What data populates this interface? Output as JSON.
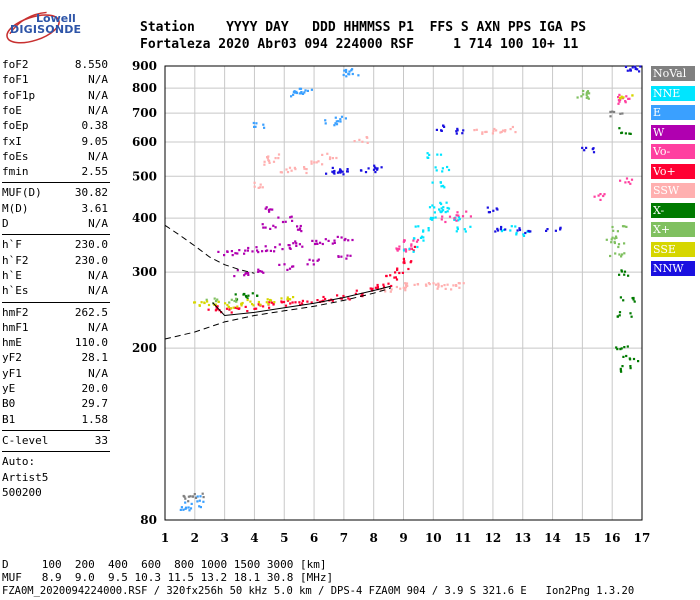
{
  "logo": {
    "line1": "Lowell",
    "line2": "DIGISONDE"
  },
  "header": {
    "row1": "Station    YYYY DAY   DDD HHMMSS P1  FFS S AXN PPS IGA PS",
    "row2": "Fortaleza 2020 Abr03 094 224000 RSF     1 714 100 10+ 11"
  },
  "params": {
    "group1": [
      {
        "label": "foF2",
        "value": "8.550"
      },
      {
        "label": "foF1",
        "value": "N/A"
      },
      {
        "label": "foF1p",
        "value": "N/A"
      },
      {
        "label": "foE",
        "value": "N/A"
      },
      {
        "label": "foEp",
        "value": "0.38"
      },
      {
        "label": "fxI",
        "value": "9.05"
      },
      {
        "label": "foEs",
        "value": "N/A"
      },
      {
        "label": "fmin",
        "value": "2.55"
      }
    ],
    "group2": [
      {
        "label": "MUF(D)",
        "value": "30.82"
      },
      {
        "label": "M(D)",
        "value": "3.61"
      },
      {
        "label": "D",
        "value": "N/A"
      }
    ],
    "group3": [
      {
        "label": "h`F",
        "value": "230.0"
      },
      {
        "label": "h`F2",
        "value": "230.0"
      },
      {
        "label": "h`E",
        "value": "N/A"
      },
      {
        "label": "h`Es",
        "value": "N/A"
      }
    ],
    "group4": [
      {
        "label": "hmF2",
        "value": "262.5"
      },
      {
        "label": "hmF1",
        "value": "N/A"
      },
      {
        "label": "hmE",
        "value": "110.0"
      },
      {
        "label": "yF2",
        "value": "28.1"
      },
      {
        "label": "yF1",
        "value": "N/A"
      },
      {
        "label": "yE",
        "value": "20.0"
      },
      {
        "label": "B0",
        "value": "29.7"
      },
      {
        "label": "B1",
        "value": "1.58"
      }
    ],
    "group5": [
      {
        "label": "C-level",
        "value": "33"
      }
    ],
    "group6": [
      {
        "label": "Auto:",
        "value": ""
      },
      {
        "label": "Artist5",
        "value": ""
      },
      {
        "label": "500200",
        "value": ""
      }
    ]
  },
  "bottom": {
    "line1": "D     100  200  400  600  800 1000 1500 3000 [km]",
    "line2": "MUF   8.9  9.0  9.5 10.3 11.5 13.2 18.1 30.8 [MHz]",
    "line3": "FZA0M_2020094224000.RSF / 320fx256h 50 kHz 5.0 km / DPS-4 FZA0M 904 / 3.9 S 321.6 E   Ion2Png 1.3.20"
  },
  "legend": [
    {
      "name": "NoVal",
      "color": "#808080"
    },
    {
      "name": "NNE",
      "color": "#00e5ff"
    },
    {
      "name": "E",
      "color": "#3aa0ff"
    },
    {
      "name": "W",
      "color": "#b000b0"
    },
    {
      "name": "Vo-",
      "color": "#ff40a0"
    },
    {
      "name": "Vo+",
      "color": "#ff0033"
    },
    {
      "name": "SSW",
      "color": "#ffb0b0"
    },
    {
      "name": "X-",
      "color": "#007a00"
    },
    {
      "name": "X+",
      "color": "#80c060"
    },
    {
      "name": "SSE",
      "color": "#d6d600"
    },
    {
      "name": "NNW",
      "color": "#1a10e0"
    }
  ],
  "chart_data": {
    "type": "scatter",
    "title": "",
    "xlabel": "",
    "ylabel": "",
    "xlim": [
      1,
      17
    ],
    "ylim": [
      80,
      900
    ],
    "y_scale": "log",
    "x_ticks": [
      1,
      2,
      3,
      4,
      5,
      6,
      7,
      8,
      9,
      10,
      11,
      12,
      13,
      14,
      15,
      16,
      17
    ],
    "y_ticks": [
      80,
      200,
      300,
      400,
      500,
      600,
      700,
      800,
      900
    ],
    "grid": true,
    "legend_position": "right",
    "profile_curve": [
      [
        1.0,
        385
      ],
      [
        1.5,
        365
      ],
      [
        2.0,
        345
      ],
      [
        2.5,
        325
      ],
      [
        3.0,
        312
      ],
      [
        3.5,
        304
      ],
      [
        4.0,
        298
      ]
    ],
    "profile_lower": [
      [
        1.0,
        210
      ],
      [
        2.0,
        218
      ],
      [
        3.0,
        230
      ],
      [
        4.0,
        238
      ],
      [
        5.0,
        244
      ],
      [
        6.0,
        250
      ],
      [
        7.0,
        258
      ],
      [
        8.0,
        268
      ],
      [
        8.55,
        275
      ],
      [
        8.55,
        278
      ]
    ],
    "profile_upper": [
      [
        2.6,
        255
      ],
      [
        3.0,
        238
      ],
      [
        4.0,
        242
      ],
      [
        5.0,
        248
      ],
      [
        6.0,
        254
      ],
      [
        7.0,
        262
      ],
      [
        8.0,
        272
      ],
      [
        8.55,
        278
      ]
    ],
    "trace_series": [
      {
        "name": "Vo+",
        "color": "#ff0033",
        "points": [
          [
            2.6,
            250
          ],
          [
            3.0,
            246
          ],
          [
            3.5,
            248
          ],
          [
            4.0,
            251
          ],
          [
            4.5,
            253
          ],
          [
            5.0,
            255
          ],
          [
            5.5,
            257
          ],
          [
            6.0,
            259
          ],
          [
            6.5,
            262
          ],
          [
            7.0,
            265
          ],
          [
            7.5,
            269
          ],
          [
            8.0,
            275
          ],
          [
            8.3,
            282
          ],
          [
            8.6,
            292
          ],
          [
            8.9,
            305
          ],
          [
            9.1,
            320
          ],
          [
            9.2,
            340
          ]
        ]
      },
      {
        "name": "W",
        "color": "#b000b0",
        "points": [
          [
            3.0,
            335
          ],
          [
            3.5,
            338
          ],
          [
            4.0,
            340
          ],
          [
            4.5,
            342
          ],
          [
            5.0,
            345
          ],
          [
            5.5,
            350
          ],
          [
            6.0,
            352
          ],
          [
            6.5,
            356
          ],
          [
            7.0,
            360
          ],
          [
            3.5,
            300
          ],
          [
            4.0,
            302
          ],
          [
            5.0,
            310
          ],
          [
            6.0,
            318
          ],
          [
            7.0,
            325
          ],
          [
            4.5,
            385
          ],
          [
            4.6,
            420
          ],
          [
            5.0,
            400
          ],
          [
            5.5,
            380
          ]
        ]
      },
      {
        "name": "SSW",
        "color": "#ffb0b0",
        "points": [
          [
            8.4,
            275
          ],
          [
            8.8,
            278
          ],
          [
            9.2,
            280
          ],
          [
            9.6,
            282
          ],
          [
            10.0,
            280
          ],
          [
            10.4,
            278
          ],
          [
            10.8,
            280
          ],
          [
            4.2,
            480
          ],
          [
            4.4,
            540
          ],
          [
            4.6,
            560
          ],
          [
            5.0,
            520
          ],
          [
            5.5,
            520
          ],
          [
            6.0,
            540
          ],
          [
            6.5,
            560
          ],
          [
            7.5,
            610
          ],
          [
            11.5,
            640
          ],
          [
            12.0,
            640
          ],
          [
            12.5,
            645
          ]
        ]
      },
      {
        "name": "NNE",
        "color": "#00e5ff",
        "points": [
          [
            9.2,
            340
          ],
          [
            9.4,
            360
          ],
          [
            9.6,
            380
          ],
          [
            9.8,
            400
          ],
          [
            10.0,
            420
          ],
          [
            10.2,
            430
          ],
          [
            10.5,
            420
          ],
          [
            10.8,
            400
          ],
          [
            11.0,
            380
          ],
          [
            12.5,
            380
          ],
          [
            13.0,
            370
          ],
          [
            10.2,
            480
          ],
          [
            10.3,
            520
          ],
          [
            10.0,
            560
          ]
        ]
      },
      {
        "name": "E",
        "color": "#3aa0ff",
        "points": [
          [
            5.3,
            780
          ],
          [
            5.5,
            790
          ],
          [
            5.7,
            790
          ],
          [
            6.5,
            670
          ],
          [
            6.8,
            680
          ],
          [
            4.2,
            660
          ],
          [
            1.7,
            85
          ],
          [
            1.9,
            87
          ],
          [
            2.0,
            90
          ],
          [
            7.0,
            880
          ],
          [
            7.2,
            870
          ]
        ]
      },
      {
        "name": "NNW",
        "color": "#1a10e0",
        "points": [
          [
            6.6,
            515
          ],
          [
            6.8,
            518
          ],
          [
            7.0,
            515
          ],
          [
            7.8,
            520
          ],
          [
            8.0,
            525
          ],
          [
            12.2,
            380
          ],
          [
            13.0,
            375
          ],
          [
            14.0,
            380
          ],
          [
            12.0,
            420
          ],
          [
            11.0,
            640
          ],
          [
            10.2,
            650
          ],
          [
            15.1,
            580
          ],
          [
            16.6,
            890
          ],
          [
            16.7,
            890
          ]
        ]
      },
      {
        "name": "Vo-",
        "color": "#ff40a0",
        "points": [
          [
            8.8,
            340
          ],
          [
            9.0,
            345
          ],
          [
            9.2,
            355
          ],
          [
            10.5,
            400
          ],
          [
            11.0,
            410
          ],
          [
            16.3,
            765
          ],
          [
            16.4,
            750
          ],
          [
            15.5,
            450
          ],
          [
            16.4,
            490
          ]
        ]
      },
      {
        "name": "X-",
        "color": "#007a00",
        "points": [
          [
            16.3,
            300
          ],
          [
            16.5,
            260
          ],
          [
            16.4,
            240
          ],
          [
            16.5,
            180
          ],
          [
            16.6,
            190
          ],
          [
            16.3,
            200
          ],
          [
            16.4,
            640
          ],
          [
            3.5,
            265
          ],
          [
            3.8,
            268
          ]
        ]
      },
      {
        "name": "X+",
        "color": "#80c060",
        "points": [
          [
            16.0,
            360
          ],
          [
            16.1,
            350
          ],
          [
            16.2,
            380
          ],
          [
            16.1,
            330
          ],
          [
            15.0,
            780
          ],
          [
            15.0,
            770
          ],
          [
            3.2,
            260
          ],
          [
            2.5,
            258
          ]
        ]
      },
      {
        "name": "SSE",
        "color": "#d6d600",
        "points": [
          [
            2.2,
            255
          ],
          [
            2.5,
            256
          ],
          [
            3.0,
            252
          ],
          [
            3.5,
            254
          ],
          [
            4.0,
            256
          ],
          [
            4.5,
            258
          ],
          [
            5.0,
            260
          ],
          [
            16.4,
            770
          ]
        ]
      },
      {
        "name": "NoVal",
        "color": "#808080",
        "points": [
          [
            1.8,
            90
          ],
          [
            2.0,
            92
          ],
          [
            16.1,
            700
          ]
        ]
      }
    ]
  }
}
